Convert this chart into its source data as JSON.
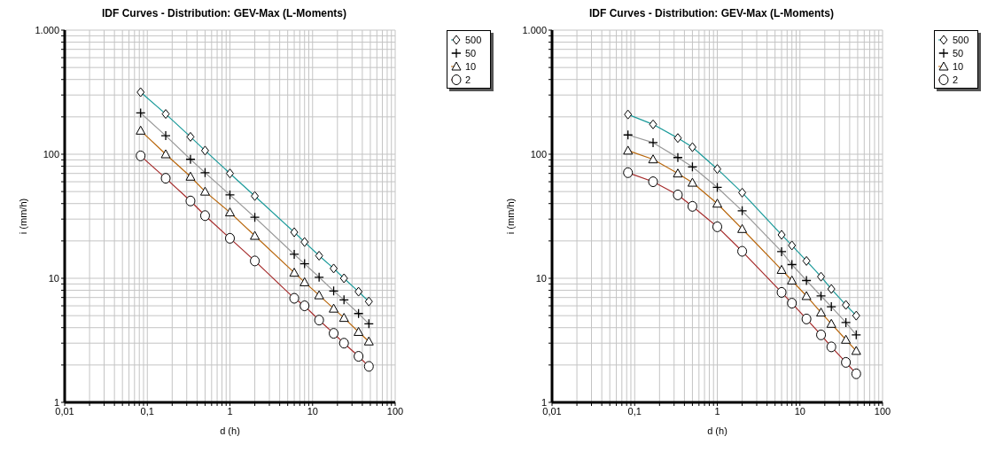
{
  "chart_data": [
    {
      "type": "line",
      "title": "IDF Curves - Distribution: GEV-Max (L-Moments)",
      "xlabel": "d (h)",
      "ylabel": "i (mm/h)",
      "log": "xy",
      "grid": true,
      "legend": "top right",
      "x": [
        0.083,
        0.167,
        0.333,
        0.5,
        1,
        2,
        6,
        8,
        12,
        18,
        24,
        36,
        48
      ],
      "xlim": [
        0.01,
        100
      ],
      "ylim": [
        1,
        1000
      ],
      "xticks": [
        {
          "value": 0.01,
          "label": "0,01"
        },
        {
          "value": 0.02,
          "label": null
        },
        {
          "value": 0.03,
          "label": null
        },
        {
          "value": 0.04,
          "label": null
        },
        {
          "value": 0.05,
          "label": null
        },
        {
          "value": 0.06,
          "label": null
        },
        {
          "value": 0.07,
          "label": null
        },
        {
          "value": 0.08,
          "label": null
        },
        {
          "value": 0.09,
          "label": null
        },
        {
          "value": 0.1,
          "label": "0,1"
        },
        {
          "value": 0.2,
          "label": null
        },
        {
          "value": 0.3,
          "label": null
        },
        {
          "value": 0.4,
          "label": null
        },
        {
          "value": 0.5,
          "label": null
        },
        {
          "value": 0.6,
          "label": null
        },
        {
          "value": 0.7,
          "label": null
        },
        {
          "value": 0.8,
          "label": null
        },
        {
          "value": 0.9,
          "label": null
        },
        1,
        {
          "value": 2,
          "label": null
        },
        {
          "value": 3,
          "label": null
        },
        {
          "value": 4,
          "label": null
        },
        {
          "value": 5,
          "label": null
        },
        {
          "value": 6,
          "label": null
        },
        {
          "value": 7,
          "label": null
        },
        {
          "value": 8,
          "label": null
        },
        {
          "value": 9,
          "label": null
        },
        10,
        {
          "value": 20,
          "label": null
        },
        {
          "value": 30,
          "label": null
        },
        {
          "value": 40,
          "label": null
        },
        {
          "value": 50,
          "label": null
        },
        {
          "value": 60,
          "label": null
        },
        {
          "value": 70,
          "label": null
        },
        {
          "value": 80,
          "label": null
        },
        {
          "value": 90,
          "label": null
        },
        100
      ],
      "yticks": [
        1,
        {
          "value": 2,
          "label": null
        },
        {
          "value": 3,
          "label": null
        },
        {
          "value": 4,
          "label": null
        },
        {
          "value": 5,
          "label": null
        },
        {
          "value": 6,
          "label": null
        },
        {
          "value": 7,
          "label": null
        },
        {
          "value": 8,
          "label": null
        },
        {
          "value": 9,
          "label": null
        },
        10,
        {
          "value": 20,
          "label": null
        },
        {
          "value": 30,
          "label": null
        },
        {
          "value": 40,
          "label": null
        },
        {
          "value": 50,
          "label": null
        },
        {
          "value": 60,
          "label": null
        },
        {
          "value": 70,
          "label": null
        },
        {
          "value": 80,
          "label": null
        },
        {
          "value": 90,
          "label": null
        },
        100,
        {
          "value": 200,
          "label": null
        },
        {
          "value": 300,
          "label": null
        },
        {
          "value": 400,
          "label": null
        },
        {
          "value": 500,
          "label": null
        },
        {
          "value": 600,
          "label": null
        },
        {
          "value": 700,
          "label": null
        },
        {
          "value": 800,
          "label": null
        },
        {
          "value": 900,
          "label": null
        },
        {
          "value": 1000,
          "label": "1.000"
        }
      ],
      "series": [
        {
          "name": "500",
          "color": "#1a9a9a",
          "marker": "diamond",
          "values": [
            316,
            211,
            138,
            107,
            70,
            46,
            23.5,
            19.6,
            15.2,
            12,
            10,
            7.8,
            6.5
          ]
        },
        {
          "name": "50",
          "color": "#999999",
          "marker": "cross",
          "values": [
            215,
            141,
            91,
            71,
            47,
            31,
            15.6,
            13.1,
            10.2,
            7.9,
            6.7,
            5.2,
            4.3
          ]
        },
        {
          "name": "10",
          "color": "#b8660b",
          "marker": "triangle",
          "values": [
            155,
            100,
            66,
            50,
            34,
            22,
            11.1,
            9.3,
            7.3,
            5.7,
            4.8,
            3.7,
            3.1
          ]
        },
        {
          "name": "2",
          "color": "#a52a2a",
          "marker": "circle",
          "values": [
            97,
            64,
            42,
            32,
            21,
            13.8,
            6.9,
            6,
            4.6,
            3.6,
            3,
            2.35,
            1.95
          ]
        }
      ]
    },
    {
      "type": "line",
      "title": "IDF Curves - Distribution: GEV-Max (L-Moments)",
      "xlabel": "d (h)",
      "ylabel": "i (mm/h)",
      "log": "xy",
      "grid": true,
      "legend": "top right",
      "x": [
        0.083,
        0.167,
        0.333,
        0.5,
        1,
        2,
        6,
        8,
        12,
        18,
        24,
        36,
        48
      ],
      "xlim": [
        0.01,
        100
      ],
      "ylim": [
        1,
        1000
      ],
      "xticks": [
        {
          "value": 0.01,
          "label": "0,01"
        },
        {
          "value": 0.02,
          "label": null
        },
        {
          "value": 0.03,
          "label": null
        },
        {
          "value": 0.04,
          "label": null
        },
        {
          "value": 0.05,
          "label": null
        },
        {
          "value": 0.06,
          "label": null
        },
        {
          "value": 0.07,
          "label": null
        },
        {
          "value": 0.08,
          "label": null
        },
        {
          "value": 0.09,
          "label": null
        },
        {
          "value": 0.1,
          "label": "0,1"
        },
        {
          "value": 0.2,
          "label": null
        },
        {
          "value": 0.3,
          "label": null
        },
        {
          "value": 0.4,
          "label": null
        },
        {
          "value": 0.5,
          "label": null
        },
        {
          "value": 0.6,
          "label": null
        },
        {
          "value": 0.7,
          "label": null
        },
        {
          "value": 0.8,
          "label": null
        },
        {
          "value": 0.9,
          "label": null
        },
        1,
        {
          "value": 2,
          "label": null
        },
        {
          "value": 3,
          "label": null
        },
        {
          "value": 4,
          "label": null
        },
        {
          "value": 5,
          "label": null
        },
        {
          "value": 6,
          "label": null
        },
        {
          "value": 7,
          "label": null
        },
        {
          "value": 8,
          "label": null
        },
        {
          "value": 9,
          "label": null
        },
        10,
        {
          "value": 20,
          "label": null
        },
        {
          "value": 30,
          "label": null
        },
        {
          "value": 40,
          "label": null
        },
        {
          "value": 50,
          "label": null
        },
        {
          "value": 60,
          "label": null
        },
        {
          "value": 70,
          "label": null
        },
        {
          "value": 80,
          "label": null
        },
        {
          "value": 90,
          "label": null
        },
        100
      ],
      "yticks": [
        1,
        {
          "value": 2,
          "label": null
        },
        {
          "value": 3,
          "label": null
        },
        {
          "value": 4,
          "label": null
        },
        {
          "value": 5,
          "label": null
        },
        {
          "value": 6,
          "label": null
        },
        {
          "value": 7,
          "label": null
        },
        {
          "value": 8,
          "label": null
        },
        {
          "value": 9,
          "label": null
        },
        10,
        {
          "value": 20,
          "label": null
        },
        {
          "value": 30,
          "label": null
        },
        {
          "value": 40,
          "label": null
        },
        {
          "value": 50,
          "label": null
        },
        {
          "value": 60,
          "label": null
        },
        {
          "value": 70,
          "label": null
        },
        {
          "value": 80,
          "label": null
        },
        {
          "value": 90,
          "label": null
        },
        100,
        {
          "value": 200,
          "label": null
        },
        {
          "value": 300,
          "label": null
        },
        {
          "value": 400,
          "label": null
        },
        {
          "value": 500,
          "label": null
        },
        {
          "value": 600,
          "label": null
        },
        {
          "value": 700,
          "label": null
        },
        {
          "value": 800,
          "label": null
        },
        {
          "value": 900,
          "label": null
        },
        {
          "value": 1000,
          "label": "1.000"
        }
      ],
      "series": [
        {
          "name": "500",
          "color": "#1a9a9a",
          "marker": "diamond",
          "values": [
            209,
            174,
            135,
            114,
            76,
            49,
            22.4,
            18.4,
            13.8,
            10.3,
            8.2,
            6.1,
            5
          ]
        },
        {
          "name": "50",
          "color": "#999999",
          "marker": "cross",
          "values": [
            143,
            124,
            94,
            79,
            54,
            35,
            16.4,
            12.9,
            9.6,
            7.2,
            5.9,
            4.4,
            3.5
          ]
        },
        {
          "name": "10",
          "color": "#b8660b",
          "marker": "triangle",
          "values": [
            107,
            91,
            70,
            59,
            40,
            25,
            11.7,
            9.6,
            7.2,
            5.3,
            4.3,
            3.2,
            2.6
          ]
        },
        {
          "name": "2",
          "color": "#a52a2a",
          "marker": "circle",
          "values": [
            71,
            60,
            47,
            38,
            26,
            16.5,
            7.7,
            6.3,
            4.7,
            3.5,
            2.8,
            2.1,
            1.7
          ]
        }
      ]
    }
  ]
}
